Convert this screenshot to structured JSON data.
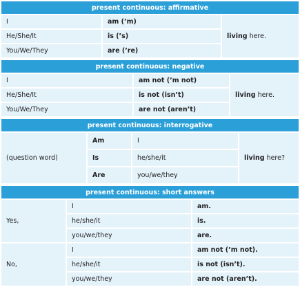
{
  "sections": [
    {
      "title": "present continuous: affirmative",
      "rows": [
        [
          "I",
          "am (’m)"
        ],
        [
          "He/She/It",
          "is (’s)"
        ],
        [
          "You/We/They",
          "are (’re)"
        ]
      ],
      "tail": {
        "bold": "living",
        "rest": "here."
      }
    },
    {
      "title": "present continuous: negative",
      "rows": [
        [
          "I",
          "am not (’m not)"
        ],
        [
          "He/She/It",
          "is not (isn’t)"
        ],
        [
          "You/We/They",
          "are not (aren’t)"
        ]
      ],
      "tail": {
        "bold": "living",
        "rest": "here."
      }
    },
    {
      "title": "present continuous: interrogative",
      "lead": "(question word)",
      "rows": [
        [
          "Am",
          "I"
        ],
        [
          "Is",
          "he/she/it"
        ],
        [
          "Are",
          "you/we/they"
        ]
      ],
      "tail": {
        "bold": "living",
        "rest": "here?"
      }
    },
    {
      "title": "present continuous: short answers",
      "groups": [
        {
          "lead": "Yes,",
          "rows": [
            [
              "I",
              "am."
            ],
            [
              "he/she/it",
              "is."
            ],
            [
              "you/we/they",
              "are."
            ]
          ]
        },
        {
          "lead": "No,",
          "rows": [
            [
              "I",
              "am not (’m not)."
            ],
            [
              "he/she/it",
              "is not (isn’t)."
            ],
            [
              "you/we/they",
              "are not (aren’t)."
            ]
          ]
        }
      ]
    }
  ]
}
